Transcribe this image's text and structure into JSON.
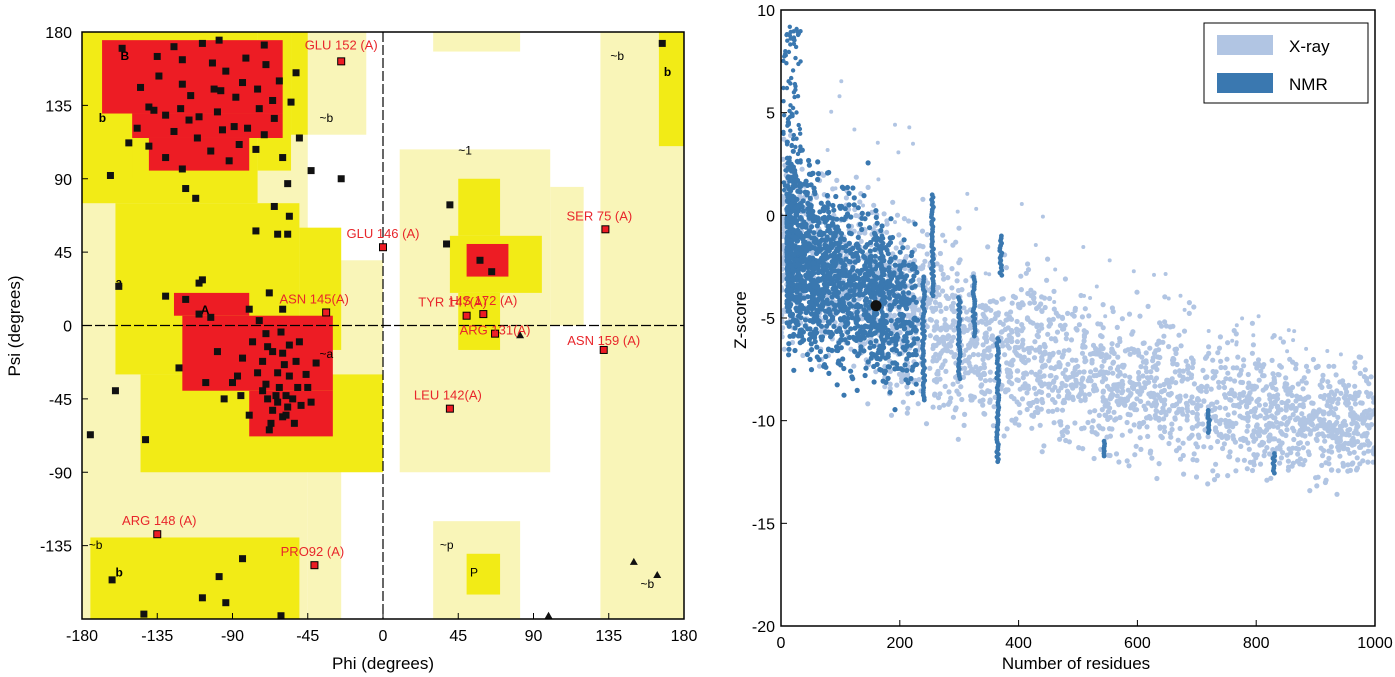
{
  "colors": {
    "core": "#ed1c24",
    "allowed": "#f2eb16",
    "generous": "#f9f5b8",
    "point": "#111111",
    "outlier_fill": "#ed1c24",
    "label_red": "#e8262b",
    "xray": "#b1c5e3",
    "nmr": "#3a78b0",
    "query": "#111111"
  },
  "chart_data": [
    {
      "type": "scatter",
      "name": "ramachandran",
      "xlabel": "Phi (degrees)",
      "ylabel": "Psi (degrees)",
      "xlim": [
        -180,
        180
      ],
      "ylim": [
        -180,
        180
      ],
      "xticks": [
        -180,
        -135,
        -90,
        -45,
        0,
        45,
        90,
        135,
        180
      ],
      "yticks": [
        -135,
        -90,
        -45,
        0,
        45,
        90,
        135,
        180
      ],
      "xtick_labels": [
        "-180",
        "-135",
        "-90",
        "-45",
        "0",
        "45",
        "90",
        "135",
        "180"
      ],
      "ytick_labels": [
        "-135",
        "-90",
        "-45",
        "0",
        "45",
        "90",
        "135",
        "180"
      ],
      "region_labels": [
        {
          "text": "B",
          "phi": -157,
          "psi": 166
        },
        {
          "text": "b",
          "phi": -170,
          "psi": 128
        },
        {
          "text": "~b",
          "phi": -38,
          "psi": 128
        },
        {
          "text": "~1",
          "phi": 45,
          "psi": 108
        },
        {
          "text": "~b",
          "phi": 136,
          "psi": 166
        },
        {
          "text": "b",
          "phi": 168,
          "psi": 156
        },
        {
          "text": "a",
          "phi": -160,
          "psi": 27
        },
        {
          "text": "A",
          "phi": -109,
          "psi": 10
        },
        {
          "text": "~a",
          "phi": -38,
          "psi": -17
        },
        {
          "text": "~b",
          "phi": -176,
          "psi": -134
        },
        {
          "text": "b",
          "phi": -160,
          "psi": -151
        },
        {
          "text": "~p",
          "phi": 34,
          "psi": -134
        },
        {
          "text": "P",
          "phi": 52,
          "psi": -151
        },
        {
          "text": "~b",
          "phi": 154,
          "psi": -158
        }
      ],
      "outliers": [
        {
          "label": "GLU 152 (A)",
          "phi": -25,
          "psi": 162
        },
        {
          "label": "SER 75 (A)",
          "phi": 133,
          "psi": 59
        },
        {
          "label": "GLU 146 (A)",
          "phi": 0,
          "psi": 48
        },
        {
          "label": "ASN 145(A)",
          "phi": -34,
          "psi": 8
        },
        {
          "label": "TYR 147(A)",
          "phi": 50,
          "psi": 6
        },
        {
          "label": "HIS 172 (A)",
          "phi": 60,
          "psi": 7
        },
        {
          "label": "ARG 131(A)",
          "phi": 67,
          "psi": -5
        },
        {
          "label": "ASN 159 (A)",
          "phi": 132,
          "psi": -15
        },
        {
          "label": "LEU 142(A)",
          "phi": 40,
          "psi": -51
        },
        {
          "label": "ARG 148 (A)",
          "phi": -135,
          "psi": -128
        },
        {
          "label": "PRO92 (A)",
          "phi": -41,
          "psi": -147
        }
      ],
      "points_general": [
        [
          -156,
          170
        ],
        [
          -125,
          171
        ],
        [
          -98,
          175
        ],
        [
          -71,
          172
        ],
        [
          -70,
          160
        ],
        [
          -75,
          145
        ],
        [
          -84,
          149
        ],
        [
          -97,
          144
        ],
        [
          -102,
          161
        ],
        [
          -120,
          163
        ],
        [
          -135,
          165
        ],
        [
          -145,
          146
        ],
        [
          -120,
          148
        ],
        [
          -134,
          153
        ],
        [
          -115,
          141
        ],
        [
          -130,
          129
        ],
        [
          -140,
          134
        ],
        [
          -125,
          119
        ],
        [
          -110,
          128
        ],
        [
          -99,
          131
        ],
        [
          -89,
          122
        ],
        [
          -81,
          121
        ],
        [
          -74,
          133
        ],
        [
          -65,
          127
        ],
        [
          -55,
          137
        ],
        [
          -62,
          150
        ],
        [
          -60,
          103
        ],
        [
          -50,
          115
        ],
        [
          -76,
          108
        ],
        [
          -86,
          111
        ],
        [
          -92,
          101
        ],
        [
          -103,
          107
        ],
        [
          -111,
          115
        ],
        [
          -120,
          96
        ],
        [
          -130,
          103
        ],
        [
          -140,
          110
        ],
        [
          -147,
          121
        ],
        [
          -152,
          112
        ],
        [
          -137,
          132
        ],
        [
          -121,
          133
        ],
        [
          -101,
          145
        ],
        [
          -94,
          156
        ],
        [
          -88,
          140
        ],
        [
          -108,
          173
        ],
        [
          -82,
          164
        ],
        [
          -116,
          126
        ],
        [
          -96,
          120
        ],
        [
          -71,
          117
        ],
        [
          -66,
          138
        ],
        [
          -52,
          155
        ],
        [
          -43,
          95
        ],
        [
          -57,
          87
        ],
        [
          -118,
          84
        ],
        [
          -163,
          92
        ],
        [
          -112,
          78
        ],
        [
          -65,
          73
        ],
        [
          -56,
          67
        ],
        [
          -25,
          90
        ],
        [
          -76,
          58
        ],
        [
          -63,
          56
        ],
        [
          -57,
          56
        ],
        [
          -108,
          28
        ],
        [
          -110,
          26
        ],
        [
          -118,
          16
        ],
        [
          -130,
          18
        ],
        [
          -158,
          24
        ],
        [
          -68,
          20
        ],
        [
          -60,
          10
        ],
        [
          -110,
          7
        ],
        [
          -103,
          5
        ],
        [
          -80,
          10
        ],
        [
          -74,
          3
        ],
        [
          -78,
          -10
        ],
        [
          -72,
          -22
        ],
        [
          -69,
          -13
        ],
        [
          -61,
          -4
        ],
        [
          -60,
          -17
        ],
        [
          -63,
          -29
        ],
        [
          -56,
          -31
        ],
        [
          -62,
          -38
        ],
        [
          -70,
          -36
        ],
        [
          -64,
          -43
        ],
        [
          -58,
          -43
        ],
        [
          -66,
          -52
        ],
        [
          -69,
          -45
        ],
        [
          -57,
          -50
        ],
        [
          -49,
          -49
        ],
        [
          -45,
          -38
        ],
        [
          -52,
          -22
        ],
        [
          -50,
          -10
        ],
        [
          -40,
          -23
        ],
        [
          -99,
          -16
        ],
        [
          -87,
          -31
        ],
        [
          -106,
          -35
        ],
        [
          -122,
          -26
        ],
        [
          -95,
          -45
        ],
        [
          -80,
          -55
        ],
        [
          -53,
          -60
        ],
        [
          -60,
          -56
        ],
        [
          -67,
          -60
        ],
        [
          -72,
          -40
        ],
        [
          -84,
          -20
        ],
        [
          -70,
          -5
        ],
        [
          -56,
          -12
        ],
        [
          -46,
          -30
        ],
        [
          -51,
          -38
        ],
        [
          -43,
          -47
        ],
        [
          -160,
          -40
        ],
        [
          -142,
          -70
        ],
        [
          -68,
          -64
        ],
        [
          -63,
          -47
        ],
        [
          -59,
          -24
        ],
        [
          -66,
          -16
        ],
        [
          -75,
          -29
        ],
        [
          -85,
          -43
        ],
        [
          -90,
          -35
        ],
        [
          -58,
          -55
        ],
        [
          -54,
          -45
        ],
        [
          -162,
          -156
        ],
        [
          -175,
          -67
        ],
        [
          -94,
          -170
        ],
        [
          -98,
          -154
        ],
        [
          -108,
          -167
        ],
        [
          -84,
          -143
        ],
        [
          -61,
          -178
        ],
        [
          -143,
          -177
        ],
        [
          40,
          74
        ],
        [
          38,
          50
        ],
        [
          65,
          33
        ],
        [
          58,
          40
        ],
        [
          167,
          173
        ]
      ],
      "points_glycine": [
        [
          82,
          -6
        ],
        [
          99,
          -178
        ],
        [
          150,
          -145
        ],
        [
          164,
          -153
        ]
      ]
    },
    {
      "type": "scatter",
      "name": "zscore",
      "xlabel": "Number of residues",
      "ylabel": "Z-score",
      "xlim": [
        0,
        1000
      ],
      "ylim": [
        -20,
        10
      ],
      "xticks": [
        0,
        200,
        400,
        600,
        800,
        1000
      ],
      "yticks": [
        -20,
        -15,
        -10,
        -5,
        0,
        5,
        10
      ],
      "xtick_labels": [
        "0",
        "200",
        "400",
        "600",
        "800",
        "1000"
      ],
      "ytick_labels": [
        "-20",
        "-15",
        "-10",
        "-5",
        "0",
        "5",
        "10"
      ],
      "legend_position": "top-right",
      "series": [
        {
          "name": "X-ray"
        },
        {
          "name": "NMR"
        }
      ],
      "query_point": {
        "x": 160,
        "y": -4.4
      }
    }
  ]
}
